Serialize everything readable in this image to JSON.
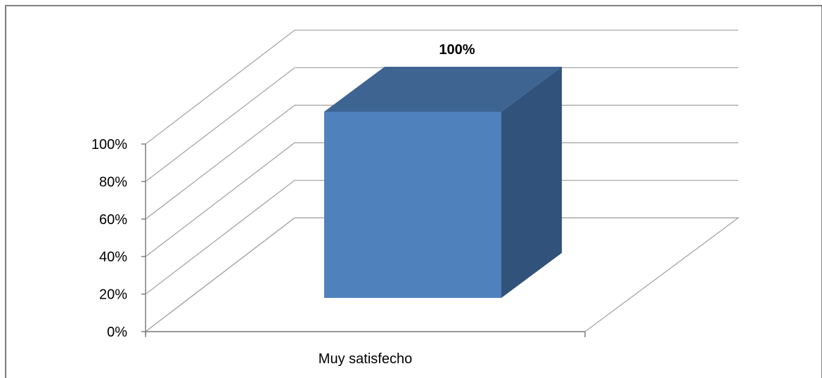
{
  "chart_data": {
    "type": "bar",
    "categories": [
      "Muy satisfecho"
    ],
    "values": [
      100
    ],
    "data_labels": [
      "100%"
    ],
    "y_tick_labels": [
      "0%",
      "20%",
      "40%",
      "60%",
      "80%",
      "100%"
    ],
    "y_ticks": [
      0,
      20,
      40,
      60,
      80,
      100
    ],
    "ylim": [
      0,
      100
    ],
    "grid": true,
    "three_d": true,
    "colors": {
      "bar_front": "#4f81bd",
      "bar_top": "#3e6492",
      "bar_side": "#31527a",
      "grid": "#a6a6a6",
      "frame": "#7f7f7f"
    }
  }
}
